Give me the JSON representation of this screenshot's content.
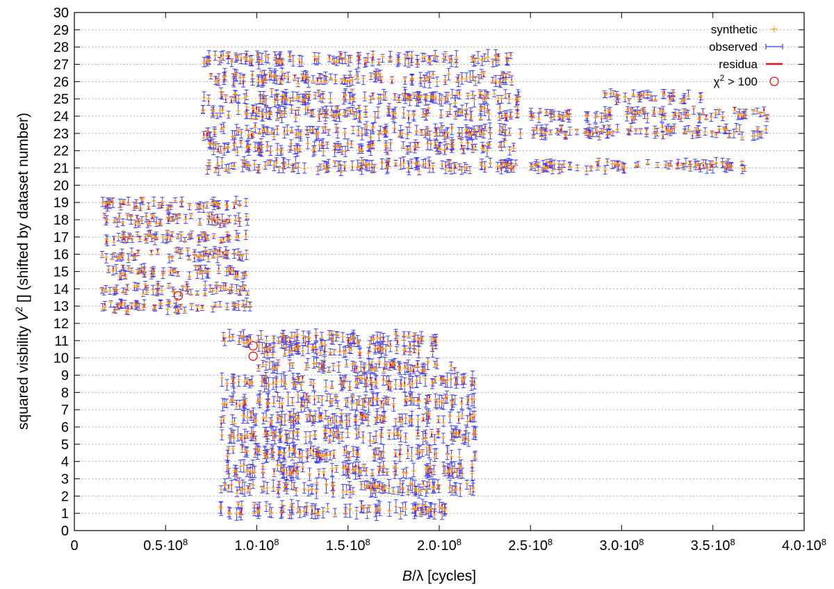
{
  "chart_data": {
    "type": "scatter",
    "xlabel": "B/λ [cycles]",
    "ylabel": "squared visbility V^2 [] (shifted by dataset number)",
    "xlim": [
      0,
      400000000
    ],
    "ylim": [
      0,
      30
    ],
    "grid": "horizontal dotted lines at each integer y",
    "legend_position": "top-right",
    "x_ticks": [
      {
        "value": 0,
        "mant": "0",
        "exp": ""
      },
      {
        "value": 50000000,
        "mant": "0.5·10",
        "exp": "8"
      },
      {
        "value": 100000000,
        "mant": "1.0·10",
        "exp": "8"
      },
      {
        "value": 150000000,
        "mant": "1.5·10",
        "exp": "8"
      },
      {
        "value": 200000000,
        "mant": "2.0·10",
        "exp": "8"
      },
      {
        "value": 250000000,
        "mant": "2.5·10",
        "exp": "8"
      },
      {
        "value": 300000000,
        "mant": "3.0·10",
        "exp": "8"
      },
      {
        "value": 350000000,
        "mant": "3.5·10",
        "exp": "8"
      },
      {
        "value": 400000000,
        "mant": "4.0·10",
        "exp": "8"
      }
    ],
    "y_ticks": [
      "0",
      "1",
      "2",
      "3",
      "4",
      "5",
      "6",
      "7",
      "8",
      "9",
      "10",
      "11",
      "12",
      "13",
      "14",
      "15",
      "16",
      "17",
      "18",
      "19",
      "20",
      "21",
      "22",
      "23",
      "24",
      "25",
      "26",
      "27",
      "28",
      "29",
      "30"
    ],
    "legend": [
      {
        "label": "synthetic",
        "marker": "plus",
        "color": "#f5a020"
      },
      {
        "label": "observed",
        "marker": "errorbar",
        "color": "#3c3cf0"
      },
      {
        "label": "residua",
        "marker": "line",
        "color": "#e81010"
      },
      {
        "label_prefix": "χ",
        "label_sup": "2",
        "label_suffix": " > 100",
        "marker": "circle",
        "color": "#e81010"
      }
    ],
    "colors": {
      "synthetic": "#f5a020",
      "observed": "#3c3cf0",
      "residua": "#e81010",
      "outlier": "#e81010"
    },
    "series": [
      {
        "name": "observed",
        "clusters": [
          {
            "x_range": [
              15000000,
              97000000
            ],
            "y": 13.0,
            "err": 0.2
          },
          {
            "x_range": [
              15000000,
              95000000
            ],
            "y": 14.0,
            "err": 0.2
          },
          {
            "x_range": [
              15000000,
              95000000
            ],
            "y": 15.0,
            "err": 0.2
          },
          {
            "x_range": [
              15000000,
              95000000
            ],
            "y": 16.0,
            "err": 0.2
          },
          {
            "x_range": [
              15000000,
              95000000
            ],
            "y": 17.0,
            "err": 0.2
          },
          {
            "x_range": [
              15000000,
              95000000
            ],
            "y": 18.0,
            "err": 0.2
          },
          {
            "x_range": [
              15000000,
              95000000
            ],
            "y": 18.9,
            "err": 0.2
          },
          {
            "x_range": [
              80000000,
              200000000
            ],
            "y": 11.1,
            "err": 0.25
          },
          {
            "x_range": [
              100000000,
              200000000
            ],
            "y": 10.5,
            "err": 0.25
          },
          {
            "x_range": [
              100000000,
              210000000
            ],
            "y": 9.5,
            "err": 0.25
          },
          {
            "x_range": [
              80000000,
              220000000
            ],
            "y": 8.6,
            "err": 0.3
          },
          {
            "x_range": [
              80000000,
              220000000
            ],
            "y": 7.5,
            "err": 0.3
          },
          {
            "x_range": [
              80000000,
              220000000
            ],
            "y": 6.5,
            "err": 0.3
          },
          {
            "x_range": [
              80000000,
              220000000
            ],
            "y": 5.5,
            "err": 0.3
          },
          {
            "x_range": [
              80000000,
              220000000
            ],
            "y": 4.5,
            "err": 0.3
          },
          {
            "x_range": [
              80000000,
              220000000
            ],
            "y": 3.5,
            "err": 0.3
          },
          {
            "x_range": [
              80000000,
              220000000
            ],
            "y": 2.5,
            "err": 0.3
          },
          {
            "x_range": [
              80000000,
              205000000
            ],
            "y": 1.2,
            "err": 0.3
          },
          {
            "x_range": [
              70000000,
              240000000
            ],
            "y": 27.3,
            "err": 0.25
          },
          {
            "x_range": [
              70000000,
              240000000
            ],
            "y": 26.2,
            "err": 0.25
          },
          {
            "x_range": [
              70000000,
              245000000
            ],
            "y": 25.1,
            "err": 0.25
          },
          {
            "x_range": [
              70000000,
              245000000
            ],
            "y": 24.2,
            "err": 0.25
          },
          {
            "x_range": [
              70000000,
              245000000
            ],
            "y": 23.1,
            "err": 0.25
          },
          {
            "x_range": [
              70000000,
              245000000
            ],
            "y": 22.2,
            "err": 0.25
          },
          {
            "x_range": [
              70000000,
              245000000
            ],
            "y": 21.1,
            "err": 0.25
          },
          {
            "x_range": [
              250000000,
              380000000
            ],
            "y": 24.1,
            "err": 0.2
          },
          {
            "x_range": [
              250000000,
              380000000
            ],
            "y": 23.1,
            "err": 0.2
          },
          {
            "x_range": [
              250000000,
              370000000
            ],
            "y": 21.1,
            "err": 0.2
          },
          {
            "x_range": [
              290000000,
              345000000
            ],
            "y": 25.1,
            "err": 0.2
          }
        ]
      }
    ],
    "outliers": [
      {
        "x": 57000000,
        "y": 13.6
      },
      {
        "x": 98000000,
        "y": 10.7
      },
      {
        "x": 98000000,
        "y": 10.1
      }
    ]
  }
}
